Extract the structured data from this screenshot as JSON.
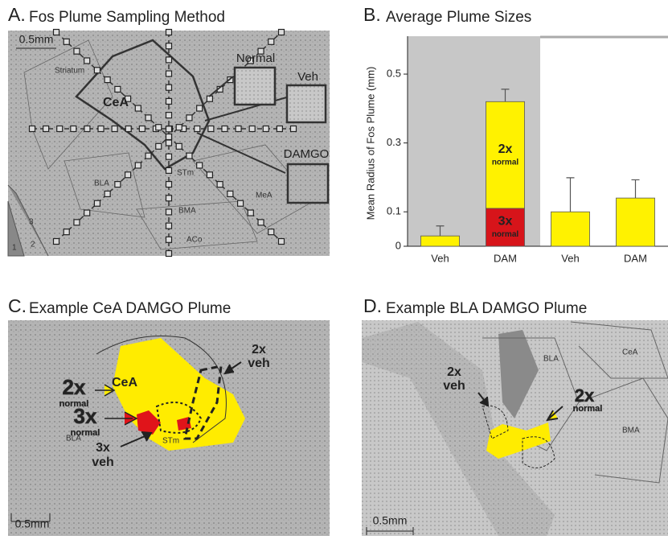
{
  "panel_a": {
    "letter": "A.",
    "title": "Fos Plume Sampling Method",
    "scale": "0.5mm",
    "regions": [
      "Striatum",
      "CeA",
      "BLA",
      "STm",
      "MeA",
      "BMA",
      "ACo",
      "3",
      "1",
      "2"
    ],
    "insets": [
      "Normal",
      "Veh",
      "DAMGO"
    ]
  },
  "chart_data": {
    "type": "bar",
    "letter": "B.",
    "title": "Average Plume Sizes",
    "y_label": "Mean Radius of Fos Plume (mm)",
    "categories": [
      "Veh",
      "DAM",
      "Veh",
      "DAM"
    ],
    "stacked": true,
    "series": [
      {
        "labels": [
          "3x",
          "normal"
        ],
        "color": "#d7141a",
        "values": [
          null,
          0.11,
          null,
          null
        ],
        "errors": [
          null,
          0.055,
          null,
          null
        ]
      },
      {
        "labels": [
          "2x",
          "normal"
        ],
        "color": "#fff200",
        "values": [
          0.03,
          0.31,
          0.1,
          0.14
        ],
        "errors": [
          0.029,
          0.036,
          0.099,
          0.053
        ]
      }
    ],
    "ylim": [
      0,
      0.61
    ],
    "yticks": [
      0,
      0.1,
      0.3,
      0.5
    ]
  },
  "panel_c": {
    "letter": "C.",
    "title": "Example CeA DAMGO Plume",
    "scale": "0.5mm",
    "regions": [
      "CeA",
      "BLA",
      "STm"
    ],
    "callouts": [
      [
        "2x",
        "normal"
      ],
      [
        "3x",
        "normal"
      ],
      [
        "3x",
        "veh"
      ],
      [
        "2x",
        "veh"
      ]
    ]
  },
  "panel_d": {
    "letter": "D.",
    "title": "Example BLA DAMGO Plume",
    "scale": "0.5mm",
    "regions": [
      "BLA",
      "CeA",
      "BMA"
    ],
    "callouts": [
      [
        "2x",
        "veh"
      ],
      [
        "2x",
        "normal"
      ]
    ]
  }
}
